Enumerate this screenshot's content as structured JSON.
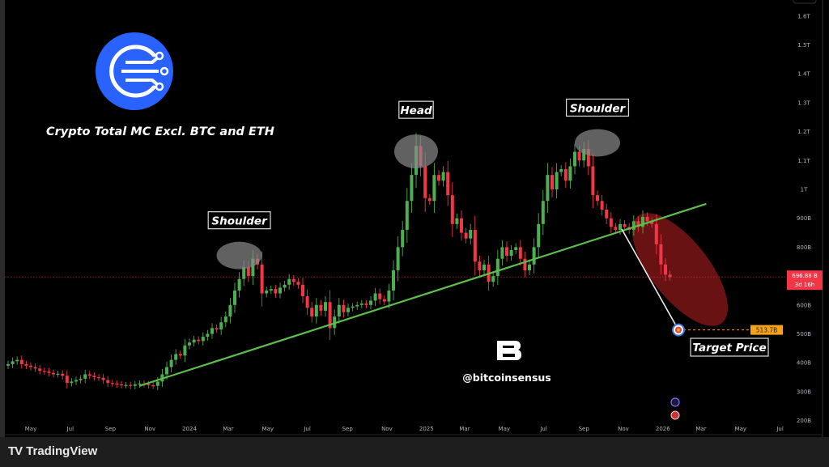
{
  "header": {
    "title": "Crypto Total MC Excl. BTC and ETH",
    "watermark_handle": "@bitcoinsensus"
  },
  "footer": {
    "brand": "TradingView"
  },
  "colors": {
    "up": "#4caf50",
    "down": "#f23645",
    "neckline": "#5cbf4a",
    "brand_blue": "#2962ff",
    "target": "#f7a21b",
    "projection_zone": "#7a1518"
  },
  "chart_data": {
    "type": "candlestick",
    "interval": "1W",
    "x_start": "2023-03-27",
    "closes": [
      395,
      405,
      410,
      395,
      390,
      385,
      380,
      372,
      370,
      365,
      360,
      362,
      355,
      330,
      335,
      340,
      345,
      360,
      355,
      350,
      348,
      340,
      330,
      328,
      325,
      322,
      323,
      320,
      325,
      328,
      326,
      322,
      320,
      335,
      360,
      385,
      410,
      430,
      425,
      460,
      470,
      480,
      475,
      490,
      500,
      520,
      515,
      540,
      560,
      600,
      650,
      690,
      730,
      700,
      760,
      740,
      640,
      650,
      655,
      640,
      660,
      670,
      690,
      680,
      670,
      630,
      590,
      560,
      600,
      580,
      610,
      520,
      560,
      600,
      575,
      590,
      595,
      600,
      605,
      600,
      615,
      640,
      620,
      612,
      650,
      720,
      800,
      860,
      960,
      1050,
      1150,
      1080,
      970,
      960,
      1050,
      1030,
      1060,
      980,
      880,
      900,
      850,
      830,
      860,
      750,
      720,
      740,
      680,
      700,
      760,
      800,
      770,
      790,
      800,
      760,
      720,
      740,
      800,
      880,
      960,
      1050,
      1000,
      1060,
      1070,
      1030,
      1080,
      1130,
      1100,
      1140,
      1080,
      980,
      960,
      930,
      900,
      870,
      860,
      880,
      870,
      860,
      890,
      870,
      905,
      890,
      880,
      810,
      740,
      705,
      697
    ],
    "y_unit": "B",
    "ylim": [
      200,
      1600
    ],
    "y_ticks": [
      {
        "value": 1600,
        "label": "1.6T"
      },
      {
        "value": 1500,
        "label": "1.5T"
      },
      {
        "value": 1400,
        "label": "1.4T"
      },
      {
        "value": 1300,
        "label": "1.3T"
      },
      {
        "value": 1200,
        "label": "1.2T"
      },
      {
        "value": 1100,
        "label": "1.1T"
      },
      {
        "value": 1000,
        "label": "1T"
      },
      {
        "value": 900,
        "label": "900B"
      },
      {
        "value": 800,
        "label": "800B"
      },
      {
        "value": 600,
        "label": "600B"
      },
      {
        "value": 500,
        "label": "500B"
      },
      {
        "value": 400,
        "label": "400B"
      },
      {
        "value": 300,
        "label": "300B"
      },
      {
        "value": 200,
        "label": "200B"
      }
    ],
    "x_ticks": [
      {
        "date": "2023-05-01",
        "label": "May"
      },
      {
        "date": "2023-07-01",
        "label": "Jul"
      },
      {
        "date": "2023-09-01",
        "label": "Sep"
      },
      {
        "date": "2023-11-01",
        "label": "Nov"
      },
      {
        "date": "2024-01-01",
        "label": "2024"
      },
      {
        "date": "2024-03-01",
        "label": "Mar"
      },
      {
        "date": "2024-05-01",
        "label": "May"
      },
      {
        "date": "2024-07-01",
        "label": "Jul"
      },
      {
        "date": "2024-09-01",
        "label": "Sep"
      },
      {
        "date": "2024-11-01",
        "label": "Nov"
      },
      {
        "date": "2025-01-01",
        "label": "2025"
      },
      {
        "date": "2025-03-01",
        "label": "Mar"
      },
      {
        "date": "2025-05-01",
        "label": "May"
      },
      {
        "date": "2025-07-01",
        "label": "Jul"
      },
      {
        "date": "2025-09-01",
        "label": "Sep"
      },
      {
        "date": "2025-11-01",
        "label": "Nov"
      },
      {
        "date": "2026-01-01",
        "label": "2026"
      },
      {
        "date": "2026-03-01",
        "label": "Mar"
      },
      {
        "date": "2026-05-01",
        "label": "May"
      },
      {
        "date": "2026-07-01",
        "label": "Jul"
      }
    ],
    "current_price": {
      "value": 696.88,
      "label": "696.88 B",
      "countdown": "3d 16h"
    },
    "target_price": {
      "value": 513.7,
      "label": "513.7B",
      "annotation": "Target Price"
    },
    "neckline": [
      {
        "date": "2023-10-16",
        "value": 320
      },
      {
        "date": "2026-03-09",
        "value": 950
      }
    ],
    "pattern_labels": [
      {
        "text": "Shoulder",
        "date": "2024-03-18",
        "value": 760
      },
      {
        "text": "Head",
        "date": "2024-12-16",
        "value": 1120
      },
      {
        "text": "Shoulder",
        "date": "2025-09-22",
        "value": 1150
      }
    ]
  }
}
